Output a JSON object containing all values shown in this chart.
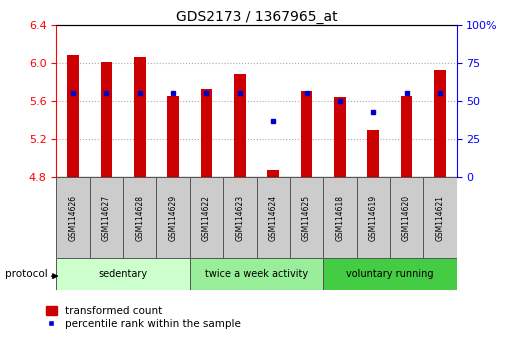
{
  "title": "GDS2173 / 1367965_at",
  "samples": [
    "GSM114626",
    "GSM114627",
    "GSM114628",
    "GSM114629",
    "GSM114622",
    "GSM114623",
    "GSM114624",
    "GSM114625",
    "GSM114618",
    "GSM114619",
    "GSM114620",
    "GSM114621"
  ],
  "transformed_count": [
    6.08,
    6.01,
    6.06,
    5.65,
    5.72,
    5.88,
    4.87,
    5.7,
    5.64,
    5.29,
    5.65,
    5.92
  ],
  "percentile_rank": [
    55,
    55,
    55,
    55,
    55,
    55,
    37,
    55,
    50,
    43,
    55,
    55
  ],
  "bar_color": "#cc0000",
  "dot_color": "#0000cc",
  "ylim_left": [
    4.8,
    6.4
  ],
  "ylim_right": [
    0,
    100
  ],
  "yticks_left": [
    4.8,
    5.2,
    5.6,
    6.0,
    6.4
  ],
  "yticks_right": [
    0,
    25,
    50,
    75,
    100
  ],
  "groups": [
    {
      "label": "sedentary",
      "indices": [
        0,
        1,
        2,
        3
      ],
      "color": "#ccffcc"
    },
    {
      "label": "twice a week activity",
      "indices": [
        4,
        5,
        6,
        7
      ],
      "color": "#99ee99"
    },
    {
      "label": "voluntary running",
      "indices": [
        8,
        9,
        10,
        11
      ],
      "color": "#44cc44"
    }
  ],
  "protocol_label": "protocol",
  "legend_bar_label": "transformed count",
  "legend_dot_label": "percentile rank within the sample",
  "grid_color": "#aaaaaa",
  "bar_width": 0.35,
  "base_value": 4.8,
  "bg_color": "#ffffff",
  "sample_box_color": "#cccccc"
}
